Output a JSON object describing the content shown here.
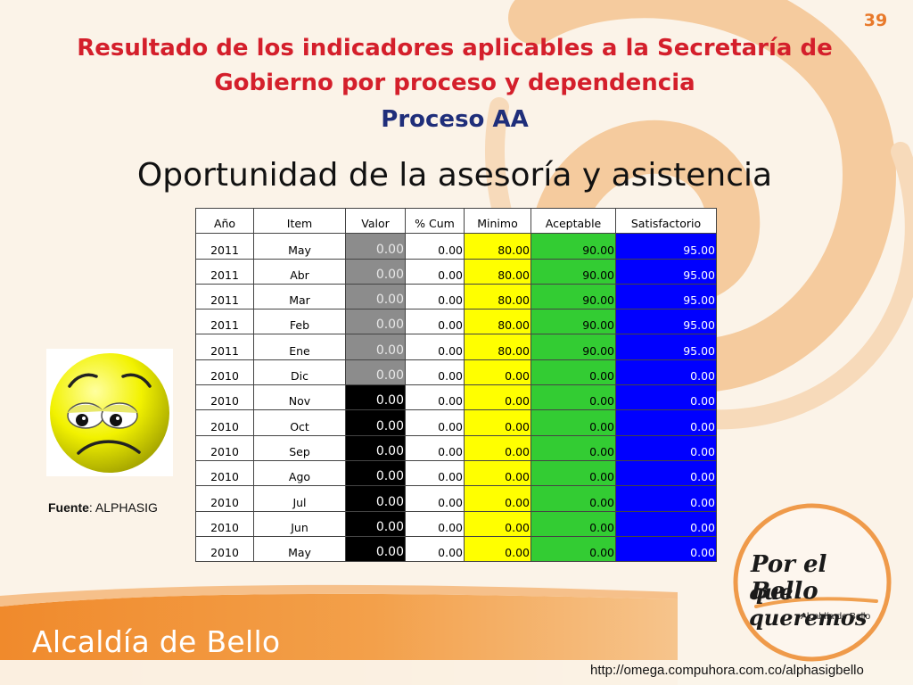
{
  "slide_number": "39",
  "title": "Resultado de los indicadores aplicables a la Secretaría de Gobierno por proceso y dependencia",
  "subtitle": "Proceso AA",
  "chart_title": "Oportunidad de la asesoría y asistencia",
  "source_label": "Fuente",
  "source_value": ": ALPHASIG",
  "footer_org": "Alcaldía de Bello",
  "logo_line1": "Por el Bello",
  "logo_line2": "que queremos",
  "logo_sub": "Alcaldía de Bello",
  "url": "http://omega.compuhora.com.co/alphasigbello",
  "colors": {
    "title": "#d41f2b",
    "subtitle": "#1f2e7a",
    "minimo": "#ffff00",
    "aceptable": "#33cc33",
    "satisfactorio": "#0000ff",
    "valor_gray": "#8c8c8c",
    "valor_black": "#000000",
    "accent_orange": "#e8792a"
  },
  "icons": {
    "face": "sad-face-icon"
  },
  "table": {
    "headers": [
      "Año",
      "Item",
      "Valor",
      "% Cum",
      "Minimo",
      "Aceptable",
      "Satisfactorio"
    ],
    "rows": [
      {
        "ano": "2011",
        "item": "May",
        "valor": "0.00",
        "cum": "0.00",
        "minimo": "80.00",
        "aceptable": "90.00",
        "satisfactorio": "95.00",
        "status": "gray"
      },
      {
        "ano": "2011",
        "item": "Abr",
        "valor": "0.00",
        "cum": "0.00",
        "minimo": "80.00",
        "aceptable": "90.00",
        "satisfactorio": "95.00",
        "status": "gray"
      },
      {
        "ano": "2011",
        "item": "Mar",
        "valor": "0.00",
        "cum": "0.00",
        "minimo": "80.00",
        "aceptable": "90.00",
        "satisfactorio": "95.00",
        "status": "gray"
      },
      {
        "ano": "2011",
        "item": "Feb",
        "valor": "0.00",
        "cum": "0.00",
        "minimo": "80.00",
        "aceptable": "90.00",
        "satisfactorio": "95.00",
        "status": "gray"
      },
      {
        "ano": "2011",
        "item": "Ene",
        "valor": "0.00",
        "cum": "0.00",
        "minimo": "80.00",
        "aceptable": "90.00",
        "satisfactorio": "95.00",
        "status": "gray"
      },
      {
        "ano": "2010",
        "item": "Dic",
        "valor": "0.00",
        "cum": "0.00",
        "minimo": "0.00",
        "aceptable": "0.00",
        "satisfactorio": "0.00",
        "status": "gray"
      },
      {
        "ano": "2010",
        "item": "Nov",
        "valor": "0.00",
        "cum": "0.00",
        "minimo": "0.00",
        "aceptable": "0.00",
        "satisfactorio": "0.00",
        "status": "black"
      },
      {
        "ano": "2010",
        "item": "Oct",
        "valor": "0.00",
        "cum": "0.00",
        "minimo": "0.00",
        "aceptable": "0.00",
        "satisfactorio": "0.00",
        "status": "black"
      },
      {
        "ano": "2010",
        "item": "Sep",
        "valor": "0.00",
        "cum": "0.00",
        "minimo": "0.00",
        "aceptable": "0.00",
        "satisfactorio": "0.00",
        "status": "black"
      },
      {
        "ano": "2010",
        "item": "Ago",
        "valor": "0.00",
        "cum": "0.00",
        "minimo": "0.00",
        "aceptable": "0.00",
        "satisfactorio": "0.00",
        "status": "black"
      },
      {
        "ano": "2010",
        "item": "Jul",
        "valor": "0.00",
        "cum": "0.00",
        "minimo": "0.00",
        "aceptable": "0.00",
        "satisfactorio": "0.00",
        "status": "black"
      },
      {
        "ano": "2010",
        "item": "Jun",
        "valor": "0.00",
        "cum": "0.00",
        "minimo": "0.00",
        "aceptable": "0.00",
        "satisfactorio": "0.00",
        "status": "black"
      },
      {
        "ano": "2010",
        "item": "May",
        "valor": "0.00",
        "cum": "0.00",
        "minimo": "0.00",
        "aceptable": "0.00",
        "satisfactorio": "0.00",
        "status": "black"
      }
    ]
  }
}
